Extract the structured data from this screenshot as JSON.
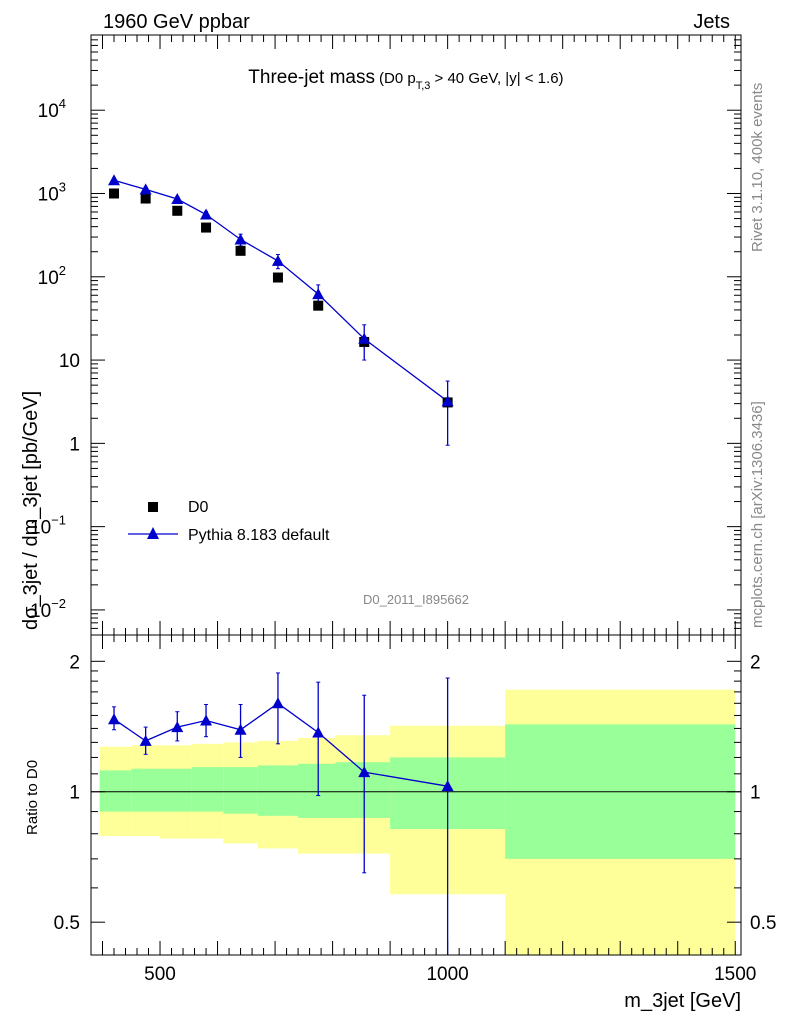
{
  "header": {
    "left": "1960 GeV ppbar",
    "right": "Jets"
  },
  "side_labels": {
    "rivet": "Rivet 3.1.10,  400k events",
    "mcplots": "mcplots.cern.ch [arXiv:1306.3436]"
  },
  "chart_data": [
    {
      "type": "scatter",
      "title_main": "Three-jet mass",
      "title_detail_prefix": "(D0 p",
      "title_detail_sub": "T,3",
      "title_detail_suffix": " > 40 GeV, |y| < 1.6)",
      "analysis_id": "D0_2011_I895662",
      "xlabel": "",
      "ylabel": "dσ_3jet / dm_3jet [pb/GeV]",
      "yscale": "log",
      "xlim": [
        380,
        1510
      ],
      "ylim": [
        0.005,
        80000
      ],
      "y_ticks": [
        {
          "value": 0.01,
          "label": "10",
          "exp": "−2"
        },
        {
          "value": 0.1,
          "label": "10",
          "exp": "−1"
        },
        {
          "value": 1,
          "label": "1",
          "exp": ""
        },
        {
          "value": 10,
          "label": "10",
          "exp": ""
        },
        {
          "value": 100,
          "label": "10",
          "exp": "2"
        },
        {
          "value": 1000,
          "label": "10",
          "exp": "3"
        },
        {
          "value": 10000,
          "label": "10",
          "exp": "4"
        }
      ],
      "legend_position": "bottom-left",
      "series": [
        {
          "name": "D0",
          "color": "#000000",
          "marker": "square",
          "x": [
            420,
            475,
            530,
            580,
            640,
            705,
            775,
            855,
            1000
          ],
          "y": [
            1000,
            870,
            620,
            390,
            205,
            98,
            45,
            16.5,
            3.1
          ]
        },
        {
          "name": "Pythia 8.183 default",
          "color": "#0000cc",
          "marker": "triangle",
          "x": [
            420,
            475,
            530,
            580,
            640,
            705,
            775,
            855,
            1000
          ],
          "y": [
            1440,
            1120,
            860,
            560,
            280,
            155,
            62,
            18,
            3.2
          ],
          "y_err_low": [
            1370,
            1060,
            800,
            510,
            235,
            125,
            44,
            10,
            0.95
          ],
          "y_err_high": [
            1520,
            1190,
            920,
            610,
            325,
            185,
            80,
            26.5,
            5.6
          ]
        }
      ]
    },
    {
      "type": "line",
      "xlabel": "m_3jet [GeV]",
      "ylabel": "Ratio to D0",
      "yscale": "log",
      "xlim": [
        380,
        1510
      ],
      "ylim": [
        0.42,
        2.3
      ],
      "x_ticks": [
        500,
        1000,
        1500
      ],
      "y_ticks": [
        {
          "value": 0.5,
          "label": "0.5"
        },
        {
          "value": 1,
          "label": "1"
        },
        {
          "value": 2,
          "label": "2"
        }
      ],
      "bands": {
        "total_color": "#ffff99",
        "stat_color": "#99ff99",
        "bins": [
          {
            "x0": 395,
            "x1": 450,
            "total": [
              0.79,
              1.27
            ],
            "stat": [
              0.9,
              1.12
            ]
          },
          {
            "x0": 450,
            "x1": 500,
            "total": [
              0.79,
              1.28
            ],
            "stat": [
              0.9,
              1.13
            ]
          },
          {
            "x0": 500,
            "x1": 555,
            "total": [
              0.78,
              1.28
            ],
            "stat": [
              0.9,
              1.13
            ]
          },
          {
            "x0": 555,
            "x1": 610,
            "total": [
              0.78,
              1.29
            ],
            "stat": [
              0.9,
              1.14
            ]
          },
          {
            "x0": 610,
            "x1": 670,
            "total": [
              0.76,
              1.3
            ],
            "stat": [
              0.89,
              1.14
            ]
          },
          {
            "x0": 670,
            "x1": 740,
            "total": [
              0.74,
              1.31
            ],
            "stat": [
              0.88,
              1.15
            ]
          },
          {
            "x0": 740,
            "x1": 805,
            "total": [
              0.72,
              1.33
            ],
            "stat": [
              0.87,
              1.16
            ]
          },
          {
            "x0": 805,
            "x1": 900,
            "total": [
              0.72,
              1.35
            ],
            "stat": [
              0.87,
              1.17
            ]
          },
          {
            "x0": 900,
            "x1": 1100,
            "total": [
              0.58,
              1.42
            ],
            "stat": [
              0.82,
              1.2
            ]
          },
          {
            "x0": 1100,
            "x1": 1500,
            "total": [
              0.4,
              1.72
            ],
            "stat": [
              0.7,
              1.43
            ]
          }
        ]
      },
      "series": [
        {
          "name": "Pythia 8.183 default",
          "color": "#0000cc",
          "x": [
            420,
            475,
            530,
            580,
            640,
            705,
            775,
            855,
            1000
          ],
          "y": [
            1.47,
            1.31,
            1.41,
            1.46,
            1.39,
            1.6,
            1.37,
            1.11,
            1.03
          ],
          "y_err_low": [
            1.39,
            1.22,
            1.31,
            1.34,
            1.2,
            1.29,
            0.98,
            0.65,
            0.3
          ],
          "y_err_high": [
            1.57,
            1.41,
            1.53,
            1.59,
            1.59,
            1.88,
            1.79,
            1.67,
            1.83
          ]
        }
      ]
    }
  ]
}
